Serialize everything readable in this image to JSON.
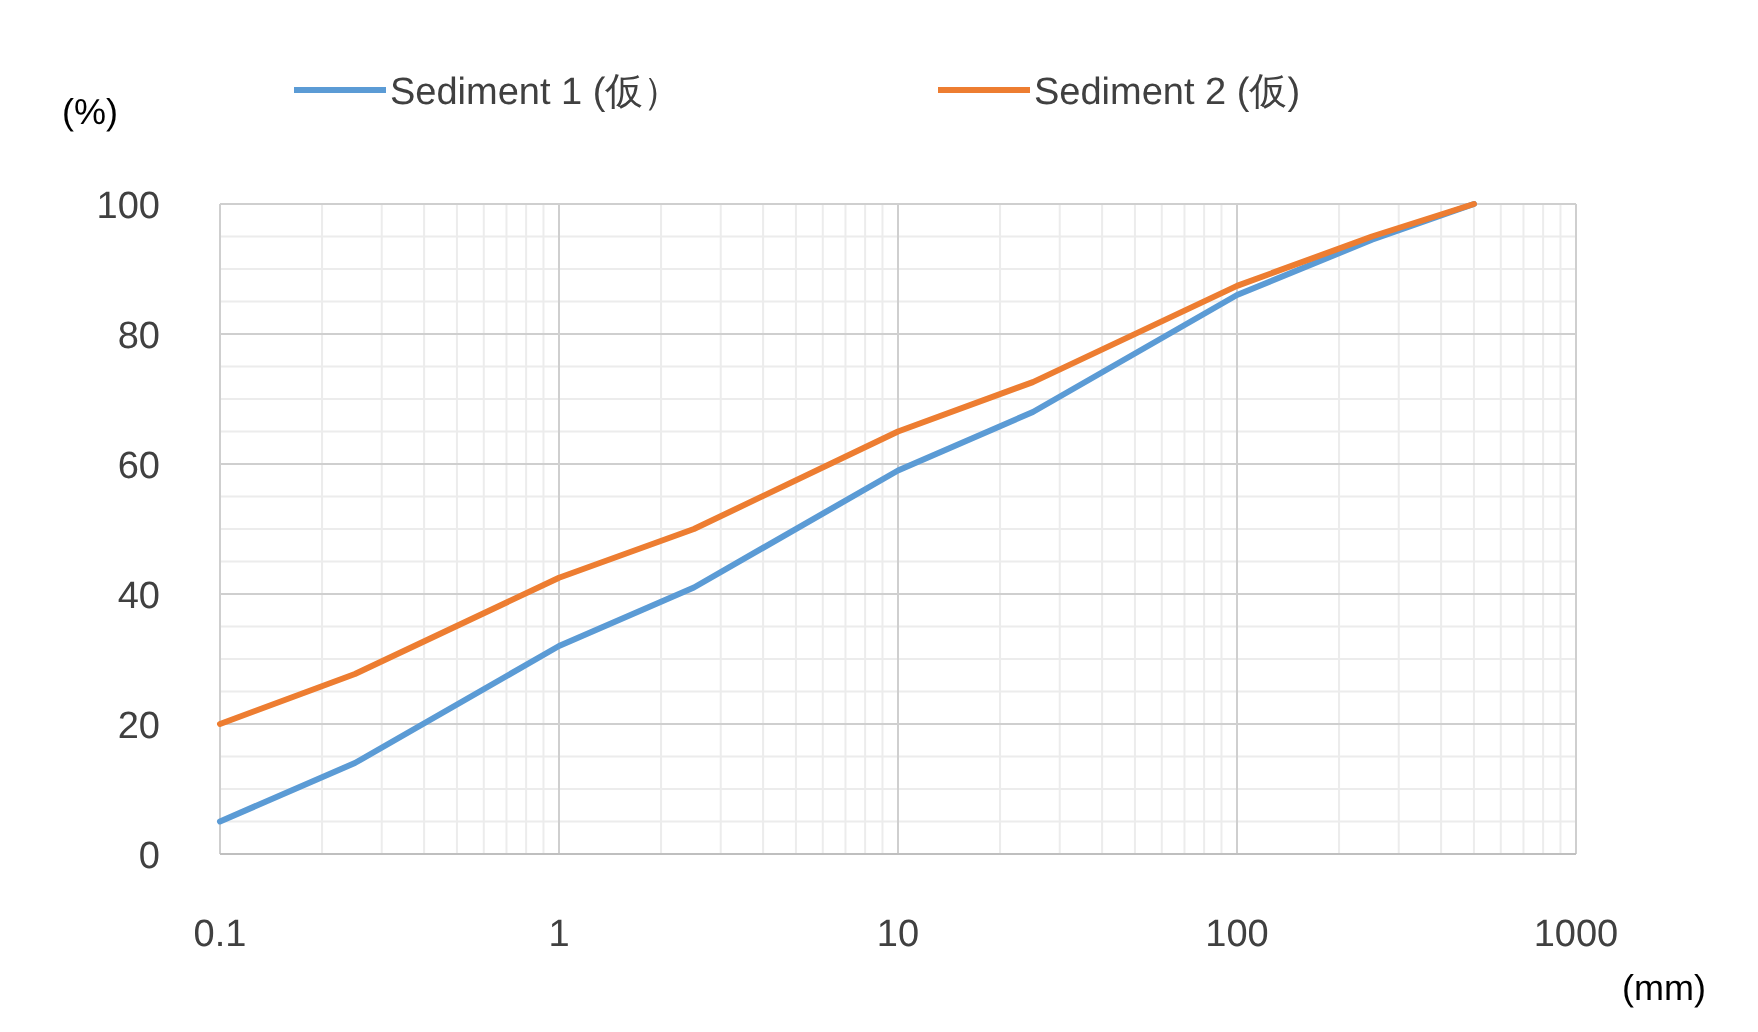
{
  "chart_data": {
    "type": "line",
    "xlabel": "(mm)",
    "ylabel": "(%)",
    "log": "x",
    "xlim": [
      0.1,
      1000
    ],
    "xticks": [
      0.1,
      1,
      10,
      100,
      1000
    ],
    "ylim": [
      0,
      100
    ],
    "yticks": [
      0,
      20,
      40,
      60,
      80,
      100
    ],
    "grid": true,
    "legend": "top",
    "marker": "none",
    "line_style": "solid",
    "x": [
      0.1,
      0.25,
      1,
      2.5,
      10,
      25,
      100,
      250,
      500
    ],
    "series": [
      {
        "name": "Sediment 1 (仮）",
        "color": "#5b9bd5",
        "values": [
          5,
          14,
          32,
          41,
          59,
          68,
          86,
          94.5,
          100
        ]
      },
      {
        "name": "Sediment 2 (仮)",
        "color": "#ed7d31",
        "values": [
          20,
          27.7,
          42.5,
          50,
          65,
          72.6,
          87.4,
          95,
          100
        ]
      }
    ]
  }
}
